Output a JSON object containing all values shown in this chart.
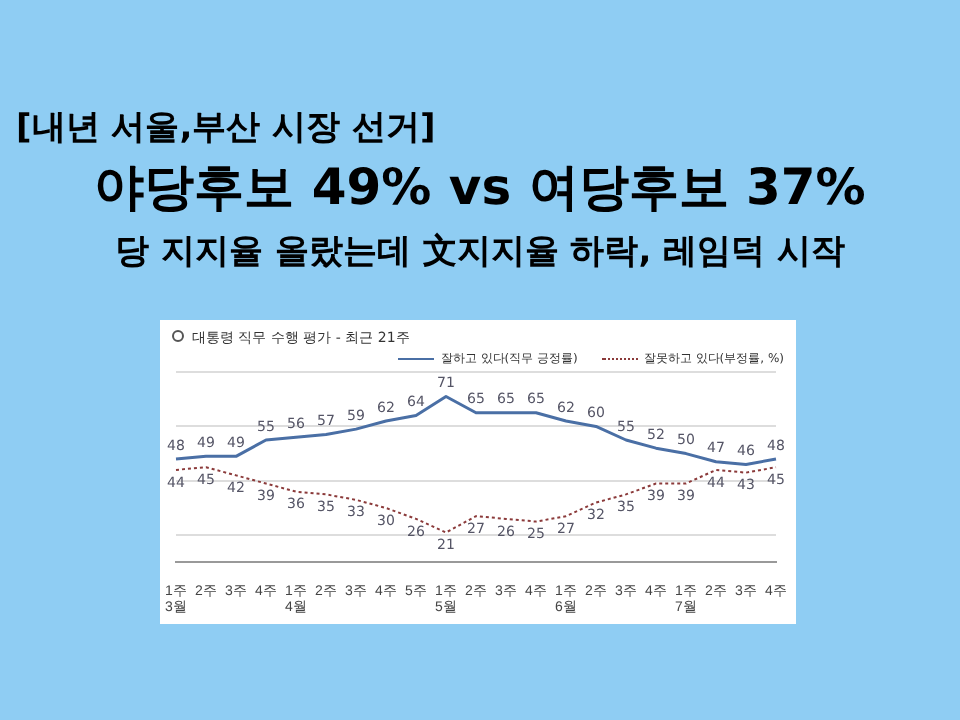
{
  "chart_data": {
    "type": "line",
    "title": "대통령 직무 수행 평가 - 최근 21주",
    "annotations": [
      "[내년 서울,부산 시장 선거]",
      "야당후보 49% vs 여당후보 37%",
      "당 지지율 올랐는데 文지지율 하락, 레임덕 시작"
    ],
    "categories": [
      "1주\n3월",
      "2주",
      "3주",
      "4주",
      "1주\n4월",
      "2주",
      "3주",
      "4주",
      "5주",
      "1주\n5월",
      "2주",
      "3주",
      "4주",
      "1주\n6월",
      "2주",
      "3주",
      "4주",
      "1주\n7월",
      "2주",
      "3주",
      "4주"
    ],
    "series": [
      {
        "name": "잘하고 있다(직무 긍정률)",
        "color": "#4a6fa5",
        "line_style": "solid",
        "values": [
          48,
          49,
          49,
          55,
          56,
          57,
          59,
          62,
          64,
          71,
          65,
          65,
          65,
          62,
          60,
          55,
          52,
          50,
          47,
          46,
          48
        ]
      },
      {
        "name": "잘못하고 있다(부정률, %)",
        "color": "#8b3a3a",
        "line_style": "dotted",
        "values": [
          44,
          45,
          42,
          39,
          36,
          35,
          33,
          30,
          26,
          21,
          27,
          26,
          25,
          27,
          32,
          35,
          39,
          39,
          44,
          43,
          45
        ]
      }
    ],
    "ylim": [
      10,
      80
    ],
    "yticks": [
      {
        "value": 20,
        "label": null
      },
      {
        "value": 40,
        "label": null
      },
      {
        "value": 60,
        "label": null
      },
      {
        "value": 80,
        "label": null
      }
    ],
    "grid": "y",
    "tick_labels": "x",
    "legend": "top right",
    "marker": "none",
    "data_labels": true
  }
}
